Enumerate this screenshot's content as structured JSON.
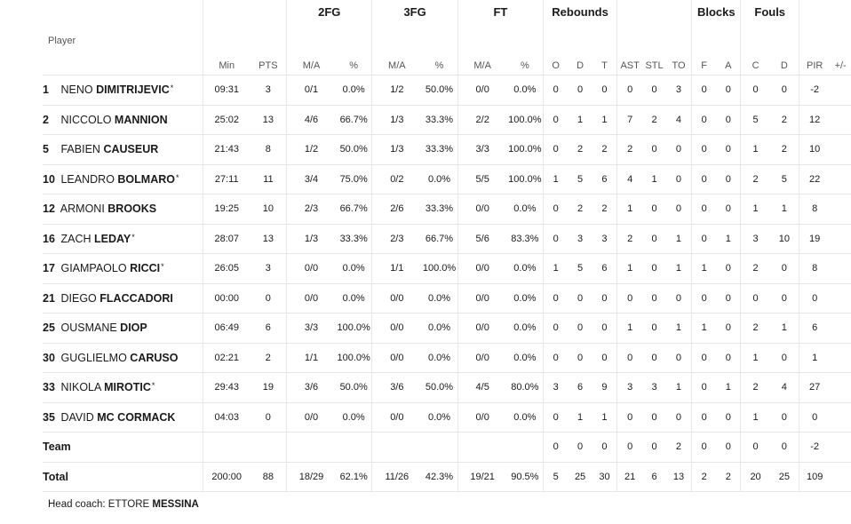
{
  "groups": {
    "fg2": "2FG",
    "fg3": "3FG",
    "ft": "FT",
    "rebounds": "Rebounds",
    "blocks": "Blocks",
    "fouls": "Fouls"
  },
  "columns": {
    "player": "Player",
    "min": "Min",
    "pts": "PTS",
    "fg2_ma": "M/A",
    "fg2_pct": "%",
    "fg3_ma": "M/A",
    "fg3_pct": "%",
    "ft_ma": "M/A",
    "ft_pct": "%",
    "reb_o": "O",
    "reb_d": "D",
    "reb_t": "T",
    "ast": "AST",
    "stl": "STL",
    "to": "TO",
    "blk_f": "F",
    "blk_a": "A",
    "foul_c": "C",
    "foul_d": "D",
    "pir": "PIR",
    "pm": "+/-"
  },
  "players": [
    {
      "num": "1",
      "first": "NENO",
      "last": "DIMITRIJEVIC",
      "star": "*",
      "min": "09:31",
      "pts": "3",
      "fg2_ma": "0/1",
      "fg2_pct": "0.0%",
      "fg3_ma": "1/2",
      "fg3_pct": "50.0%",
      "ft_ma": "0/0",
      "ft_pct": "0.0%",
      "reb_o": "0",
      "reb_d": "0",
      "reb_t": "0",
      "ast": "0",
      "stl": "0",
      "to": "3",
      "blk_f": "0",
      "blk_a": "0",
      "foul_c": "0",
      "foul_d": "0",
      "pir": "-2",
      "pm": ""
    },
    {
      "num": "2",
      "first": "NICCOLO",
      "last": "MANNION",
      "star": "",
      "min": "25:02",
      "pts": "13",
      "fg2_ma": "4/6",
      "fg2_pct": "66.7%",
      "fg3_ma": "1/3",
      "fg3_pct": "33.3%",
      "ft_ma": "2/2",
      "ft_pct": "100.0%",
      "reb_o": "0",
      "reb_d": "1",
      "reb_t": "1",
      "ast": "7",
      "stl": "2",
      "to": "4",
      "blk_f": "0",
      "blk_a": "0",
      "foul_c": "5",
      "foul_d": "2",
      "pir": "12",
      "pm": ""
    },
    {
      "num": "5",
      "first": "FABIEN",
      "last": "CAUSEUR",
      "star": "",
      "min": "21:43",
      "pts": "8",
      "fg2_ma": "1/2",
      "fg2_pct": "50.0%",
      "fg3_ma": "1/3",
      "fg3_pct": "33.3%",
      "ft_ma": "3/3",
      "ft_pct": "100.0%",
      "reb_o": "0",
      "reb_d": "2",
      "reb_t": "2",
      "ast": "2",
      "stl": "0",
      "to": "0",
      "blk_f": "0",
      "blk_a": "0",
      "foul_c": "1",
      "foul_d": "2",
      "pir": "10",
      "pm": ""
    },
    {
      "num": "10",
      "first": "LEANDRO",
      "last": "BOLMARO",
      "star": "*",
      "min": "27:11",
      "pts": "11",
      "fg2_ma": "3/4",
      "fg2_pct": "75.0%",
      "fg3_ma": "0/2",
      "fg3_pct": "0.0%",
      "ft_ma": "5/5",
      "ft_pct": "100.0%",
      "reb_o": "1",
      "reb_d": "5",
      "reb_t": "6",
      "ast": "4",
      "stl": "1",
      "to": "0",
      "blk_f": "0",
      "blk_a": "0",
      "foul_c": "2",
      "foul_d": "5",
      "pir": "22",
      "pm": ""
    },
    {
      "num": "12",
      "first": "ARMONI",
      "last": "BROOKS",
      "star": "",
      "min": "19:25",
      "pts": "10",
      "fg2_ma": "2/3",
      "fg2_pct": "66.7%",
      "fg3_ma": "2/6",
      "fg3_pct": "33.3%",
      "ft_ma": "0/0",
      "ft_pct": "0.0%",
      "reb_o": "0",
      "reb_d": "2",
      "reb_t": "2",
      "ast": "1",
      "stl": "0",
      "to": "0",
      "blk_f": "0",
      "blk_a": "0",
      "foul_c": "1",
      "foul_d": "1",
      "pir": "8",
      "pm": ""
    },
    {
      "num": "16",
      "first": "ZACH",
      "last": "LEDAY",
      "star": "*",
      "min": "28:07",
      "pts": "13",
      "fg2_ma": "1/3",
      "fg2_pct": "33.3%",
      "fg3_ma": "2/3",
      "fg3_pct": "66.7%",
      "ft_ma": "5/6",
      "ft_pct": "83.3%",
      "reb_o": "0",
      "reb_d": "3",
      "reb_t": "3",
      "ast": "2",
      "stl": "0",
      "to": "1",
      "blk_f": "0",
      "blk_a": "1",
      "foul_c": "3",
      "foul_d": "10",
      "pir": "19",
      "pm": ""
    },
    {
      "num": "17",
      "first": "GIAMPAOLO",
      "last": "RICCI",
      "star": "*",
      "min": "26:05",
      "pts": "3",
      "fg2_ma": "0/0",
      "fg2_pct": "0.0%",
      "fg3_ma": "1/1",
      "fg3_pct": "100.0%",
      "ft_ma": "0/0",
      "ft_pct": "0.0%",
      "reb_o": "1",
      "reb_d": "5",
      "reb_t": "6",
      "ast": "1",
      "stl": "0",
      "to": "1",
      "blk_f": "1",
      "blk_a": "0",
      "foul_c": "2",
      "foul_d": "0",
      "pir": "8",
      "pm": ""
    },
    {
      "num": "21",
      "first": "DIEGO",
      "last": "FLACCADORI",
      "star": "",
      "min": "00:00",
      "pts": "0",
      "fg2_ma": "0/0",
      "fg2_pct": "0.0%",
      "fg3_ma": "0/0",
      "fg3_pct": "0.0%",
      "ft_ma": "0/0",
      "ft_pct": "0.0%",
      "reb_o": "0",
      "reb_d": "0",
      "reb_t": "0",
      "ast": "0",
      "stl": "0",
      "to": "0",
      "blk_f": "0",
      "blk_a": "0",
      "foul_c": "0",
      "foul_d": "0",
      "pir": "0",
      "pm": ""
    },
    {
      "num": "25",
      "first": "OUSMANE",
      "last": "DIOP",
      "star": "",
      "min": "06:49",
      "pts": "6",
      "fg2_ma": "3/3",
      "fg2_pct": "100.0%",
      "fg3_ma": "0/0",
      "fg3_pct": "0.0%",
      "ft_ma": "0/0",
      "ft_pct": "0.0%",
      "reb_o": "0",
      "reb_d": "0",
      "reb_t": "0",
      "ast": "1",
      "stl": "0",
      "to": "1",
      "blk_f": "1",
      "blk_a": "0",
      "foul_c": "2",
      "foul_d": "1",
      "pir": "6",
      "pm": ""
    },
    {
      "num": "30",
      "first": "GUGLIELMO",
      "last": "CARUSO",
      "star": "",
      "min": "02:21",
      "pts": "2",
      "fg2_ma": "1/1",
      "fg2_pct": "100.0%",
      "fg3_ma": "0/0",
      "fg3_pct": "0.0%",
      "ft_ma": "0/0",
      "ft_pct": "0.0%",
      "reb_o": "0",
      "reb_d": "0",
      "reb_t": "0",
      "ast": "0",
      "stl": "0",
      "to": "0",
      "blk_f": "0",
      "blk_a": "0",
      "foul_c": "1",
      "foul_d": "0",
      "pir": "1",
      "pm": ""
    },
    {
      "num": "33",
      "first": "NIKOLA",
      "last": "MIROTIC",
      "star": "*",
      "min": "29:43",
      "pts": "19",
      "fg2_ma": "3/6",
      "fg2_pct": "50.0%",
      "fg3_ma": "3/6",
      "fg3_pct": "50.0%",
      "ft_ma": "4/5",
      "ft_pct": "80.0%",
      "reb_o": "3",
      "reb_d": "6",
      "reb_t": "9",
      "ast": "3",
      "stl": "3",
      "to": "1",
      "blk_f": "0",
      "blk_a": "1",
      "foul_c": "2",
      "foul_d": "4",
      "pir": "27",
      "pm": ""
    },
    {
      "num": "35",
      "first": "DAVID",
      "last": "MC CORMACK",
      "star": "",
      "min": "04:03",
      "pts": "0",
      "fg2_ma": "0/0",
      "fg2_pct": "0.0%",
      "fg3_ma": "0/0",
      "fg3_pct": "0.0%",
      "ft_ma": "0/0",
      "ft_pct": "0.0%",
      "reb_o": "0",
      "reb_d": "1",
      "reb_t": "1",
      "ast": "0",
      "stl": "0",
      "to": "0",
      "blk_f": "0",
      "blk_a": "0",
      "foul_c": "1",
      "foul_d": "0",
      "pir": "0",
      "pm": ""
    }
  ],
  "team": {
    "label": "Team",
    "min": "",
    "pts": "",
    "fg2_ma": "",
    "fg2_pct": "",
    "fg3_ma": "",
    "fg3_pct": "",
    "ft_ma": "",
    "ft_pct": "",
    "reb_o": "0",
    "reb_d": "0",
    "reb_t": "0",
    "ast": "0",
    "stl": "0",
    "to": "2",
    "blk_f": "0",
    "blk_a": "0",
    "foul_c": "0",
    "foul_d": "0",
    "pir": "-2",
    "pm": ""
  },
  "total": {
    "label": "Total",
    "min": "200:00",
    "pts": "88",
    "fg2_ma": "18/29",
    "fg2_pct": "62.1%",
    "fg3_ma": "11/26",
    "fg3_pct": "42.3%",
    "ft_ma": "19/21",
    "ft_pct": "90.5%",
    "reb_o": "5",
    "reb_d": "25",
    "reb_t": "30",
    "ast": "21",
    "stl": "6",
    "to": "13",
    "blk_f": "2",
    "blk_a": "2",
    "foul_c": "20",
    "foul_d": "25",
    "pir": "109",
    "pm": ""
  },
  "coach": {
    "label": "Head coach:",
    "first": "ETTORE",
    "last": "MESSINA"
  }
}
